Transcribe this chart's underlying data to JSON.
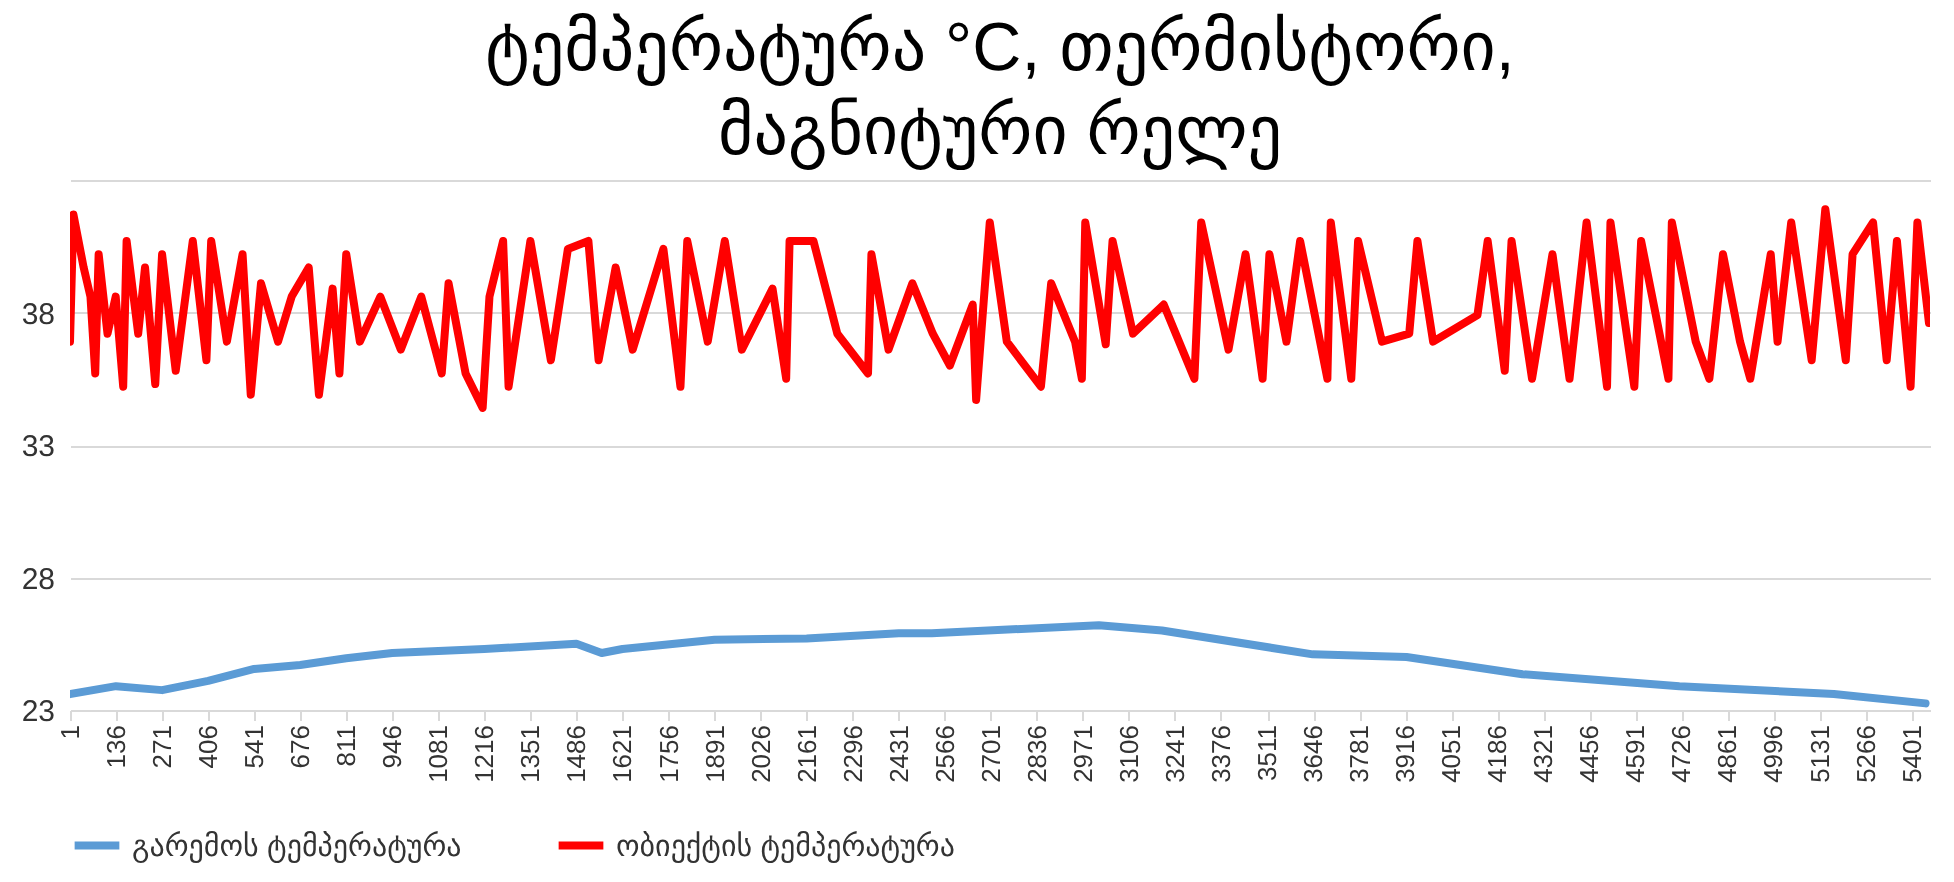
{
  "chart_data": {
    "type": "line",
    "title": "ტემპერატურა °C, თერმისტორი, მაგნიტური რელე",
    "xlim": [
      1,
      5455
    ],
    "xticks": [
      1,
      136,
      271,
      406,
      541,
      676,
      811,
      946,
      1081,
      1216,
      1351,
      1486,
      1621,
      1756,
      1891,
      2026,
      2161,
      2296,
      2431,
      2566,
      2701,
      2836,
      2971,
      3106,
      3241,
      3376,
      3511,
      3646,
      3781,
      3916,
      4051,
      4186,
      4321,
      4456,
      4591,
      4726,
      4861,
      4996,
      5131,
      5266,
      5401
    ],
    "ylim": [
      23,
      43
    ],
    "yticks": [
      23,
      28,
      33,
      38,
      {
        "value": 43,
        "label": null
      }
    ],
    "grid": "y",
    "legend": "bottom",
    "series": [
      {
        "name": "გარემოს ტემპერატურა",
        "color": "#5b9bd5",
        "x": [
          1,
          136,
          271,
          406,
          541,
          676,
          811,
          946,
          1216,
          1486,
          1560,
          1621,
          1891,
          2161,
          2431,
          2528,
          3018,
          3203,
          3645,
          3920,
          4260,
          4720,
          5173,
          5442
        ],
        "values": [
          23.6,
          23.9,
          23.75,
          24.1,
          24.55,
          24.7,
          24.95,
          25.15,
          25.3,
          25.5,
          25.15,
          25.3,
          25.65,
          25.7,
          25.9,
          25.9,
          26.2,
          26.0,
          25.1,
          25.0,
          24.35,
          23.9,
          23.6,
          23.25
        ]
      },
      {
        "name": "ობიექტის ტემპერატურა",
        "color": "#ff0000",
        "x": [
          1,
          11,
          41,
          61,
          75,
          85,
          111,
          135,
          157,
          167,
          201,
          221,
          251,
          271,
          311,
          361,
          401,
          415,
          461,
          507,
          531,
          561,
          611,
          651,
          701,
          731,
          771,
          791,
          811,
          851,
          911,
          971,
          1031,
          1091,
          1111,
          1161,
          1211,
          1231,
          1271,
          1287,
          1351,
          1411,
          1461,
          1521,
          1551,
          1601,
          1651,
          1741,
          1791,
          1811,
          1871,
          1921,
          1971,
          2061,
          2101,
          2111,
          2181,
          2251,
          2341,
          2351,
          2401,
          2471,
          2531,
          2581,
          2648,
          2658,
          2698,
          2748,
          2848,
          2878,
          2948,
          2968,
          2978,
          3038,
          3058,
          3118,
          3208,
          3298,
          3318,
          3398,
          3448,
          3498,
          3518,
          3568,
          3608,
          3688,
          3698,
          3758,
          3778,
          3848,
          3928,
          3952,
          3998,
          4128,
          4158,
          4208,
          4228,
          4288,
          4348,
          4398,
          4448,
          4508,
          4518,
          4588,
          4608,
          4688,
          4698,
          4768,
          4808,
          4848,
          4898,
          4928,
          4988,
          5008,
          5048,
          5108,
          5148,
          5208,
          5228,
          5288,
          5328,
          5358,
          5398,
          5418,
          5452
        ],
        "values": [
          36.9,
          41.7,
          39.7,
          38.6,
          35.7,
          40.2,
          37.2,
          38.6,
          35.2,
          40.7,
          37.2,
          39.7,
          35.3,
          40.2,
          35.8,
          40.7,
          36.2,
          40.7,
          36.9,
          40.2,
          34.9,
          39.1,
          36.9,
          38.6,
          39.7,
          34.9,
          38.9,
          35.7,
          40.2,
          36.9,
          38.6,
          36.6,
          38.6,
          35.7,
          39.1,
          35.7,
          34.4,
          38.6,
          40.7,
          35.2,
          40.7,
          36.2,
          40.4,
          40.7,
          36.2,
          39.7,
          36.6,
          40.4,
          35.2,
          40.7,
          36.9,
          40.7,
          36.6,
          38.9,
          35.5,
          40.7,
          40.7,
          37.2,
          35.7,
          40.2,
          36.6,
          39.1,
          37.2,
          36.0,
          38.3,
          34.7,
          41.4,
          36.9,
          35.2,
          39.1,
          36.9,
          35.5,
          41.4,
          36.8,
          40.7,
          37.2,
          38.3,
          35.5,
          41.4,
          36.6,
          40.2,
          35.5,
          40.2,
          36.9,
          40.7,
          35.5,
          41.4,
          35.5,
          40.7,
          36.9,
          37.2,
          40.7,
          36.9,
          37.9,
          40.7,
          35.8,
          40.7,
          35.5,
          40.2,
          35.5,
          41.4,
          35.2,
          41.4,
          35.2,
          40.7,
          35.5,
          41.4,
          36.9,
          35.5,
          40.2,
          36.9,
          35.5,
          40.2,
          36.9,
          41.4,
          36.2,
          41.9,
          36.2,
          40.2,
          41.4,
          36.2,
          40.7,
          35.2,
          41.4,
          37.6
        ]
      }
    ]
  }
}
